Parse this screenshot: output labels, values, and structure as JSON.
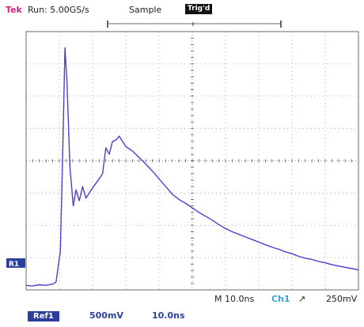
{
  "header": {
    "brand": "Tek",
    "run_status": "Run: 5.00GS/s",
    "acq_mode": "Sample",
    "trig_status": "Trig'd"
  },
  "status": {
    "time_per_div": "M 10.0ns",
    "trigger_source": "Ch1",
    "trigger_slope": "↗",
    "trigger_level": "250mV"
  },
  "reference": {
    "label": "Ref1",
    "volts_per_div": "500mV",
    "time_per_div": "10.0ns",
    "marker": "R1"
  },
  "colors": {
    "trace": "#4a3fd0",
    "grid": "#9a9a9a",
    "frame": "#6a6a6a",
    "marker_bg": "#2d3f9e"
  },
  "chart_data": {
    "type": "line",
    "title": "",
    "xlabel": "",
    "ylabel": "",
    "x_unit": "ns",
    "y_unit": "V",
    "xlim": [
      0,
      100
    ],
    "ylim": [
      0,
      4
    ],
    "grid": true,
    "series": [
      {
        "x": [
          0,
          2,
          4,
          6,
          8,
          9,
          10.3,
          11,
          11.7,
          12.3,
          13.2,
          14.2,
          15,
          16,
          17,
          18,
          19,
          20,
          21,
          22,
          23,
          24,
          25,
          26,
          27,
          28,
          29,
          30,
          32,
          34,
          36,
          38,
          40,
          42,
          44,
          46,
          48,
          50,
          52,
          54,
          56,
          58,
          60,
          62,
          64,
          66,
          68,
          70,
          72,
          74,
          76,
          78,
          80,
          82,
          84,
          86,
          88,
          90,
          92,
          94,
          96,
          98,
          100
        ],
        "y": [
          0.07,
          0.06,
          0.08,
          0.07,
          0.09,
          0.12,
          0.6,
          2.1,
          3.75,
          3.2,
          1.9,
          1.3,
          1.55,
          1.38,
          1.6,
          1.42,
          1.5,
          1.58,
          1.65,
          1.72,
          1.8,
          2.2,
          2.1,
          2.3,
          2.32,
          2.38,
          2.3,
          2.22,
          2.15,
          2.05,
          1.95,
          1.84,
          1.72,
          1.6,
          1.48,
          1.4,
          1.34,
          1.27,
          1.2,
          1.14,
          1.08,
          1.01,
          0.95,
          0.9,
          0.86,
          0.82,
          0.78,
          0.74,
          0.7,
          0.66,
          0.63,
          0.59,
          0.56,
          0.52,
          0.49,
          0.47,
          0.44,
          0.42,
          0.39,
          0.37,
          0.35,
          0.33,
          0.31
        ]
      }
    ]
  }
}
